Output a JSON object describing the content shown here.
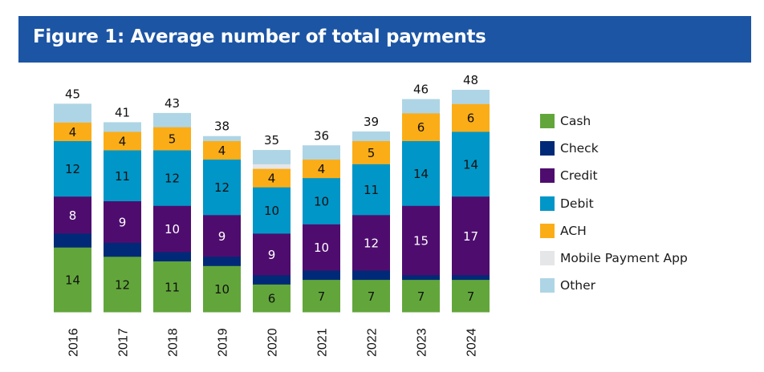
{
  "header": {
    "title": "Figure 1: Average number of total payments"
  },
  "chart_data": {
    "type": "bar",
    "stacked": true,
    "title": "Figure 1: Average number of total payments",
    "xlabel": "",
    "ylabel": "",
    "categories": [
      "2016",
      "2017",
      "2018",
      "2019",
      "2020",
      "2021",
      "2022",
      "2023",
      "2024"
    ],
    "totals": [
      45,
      41,
      43,
      38,
      35,
      36,
      39,
      46,
      48
    ],
    "ylim": [
      0,
      48
    ],
    "grid": false,
    "legend_position": "right",
    "series": [
      {
        "name": "Cash",
        "color": "#62a63b",
        "label_color": "#111111",
        "show_labels": true,
        "values": [
          14,
          12,
          11,
          10,
          6,
          7,
          7,
          7,
          7
        ]
      },
      {
        "name": "Check",
        "color": "#002a77",
        "label_color": "#ffffff",
        "show_labels": false,
        "values": [
          3,
          3,
          2,
          2,
          2,
          2,
          2,
          1,
          1
        ]
      },
      {
        "name": "Credit",
        "color": "#4e0d6e",
        "label_color": "#ffffff",
        "show_labels": true,
        "values": [
          8,
          9,
          10,
          9,
          9,
          10,
          12,
          15,
          17
        ]
      },
      {
        "name": "Debit",
        "color": "#0096c8",
        "label_color": "#111111",
        "show_labels": true,
        "values": [
          12,
          11,
          12,
          12,
          10,
          10,
          11,
          14,
          14
        ]
      },
      {
        "name": "ACH",
        "color": "#fbad18",
        "label_color": "#111111",
        "show_labels": true,
        "values": [
          4,
          4,
          5,
          4,
          4,
          4,
          5,
          6,
          6
        ]
      },
      {
        "name": "Mobile Payment App",
        "color": "#e5e6e8",
        "label_color": "#111111",
        "show_labels": false,
        "values": [
          0,
          0,
          0,
          0,
          1,
          0,
          0,
          0,
          0
        ]
      },
      {
        "name": "Other",
        "color": "#aed5e5",
        "label_color": "#111111",
        "show_labels": false,
        "values": [
          4,
          2,
          3,
          1,
          3,
          3,
          2,
          3,
          3
        ]
      }
    ]
  }
}
